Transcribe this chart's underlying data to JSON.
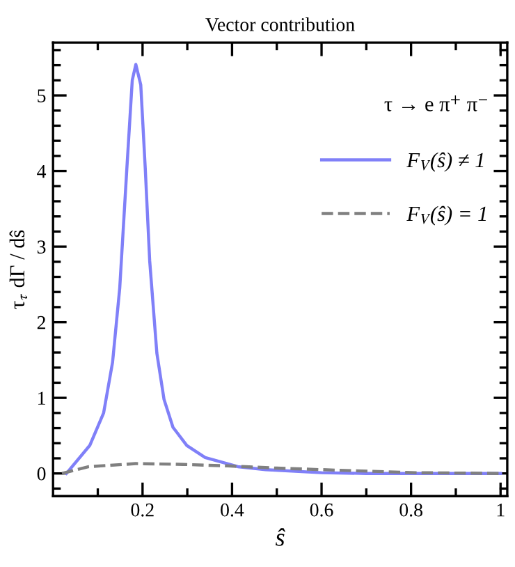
{
  "chart_data": {
    "type": "line",
    "title": "Vector contribution",
    "xlabel": "ŝ",
    "ylabel": "τ$_{τ}$ dΓ / dŝ",
    "xlim": [
      0,
      1.015
    ],
    "ylim": [
      -0.3,
      5.7
    ],
    "xticks": [
      {
        "value": 0.1,
        "label": null
      },
      0.2,
      {
        "value": 0.3,
        "label": null
      },
      0.4,
      {
        "value": 0.5,
        "label": null
      },
      0.6,
      {
        "value": 0.7,
        "label": null
      },
      0.8,
      {
        "value": 0.9,
        "label": null
      },
      1
    ],
    "yticks": [
      {
        "value": -0.2,
        "label": null
      },
      0,
      {
        "value": 0.2,
        "label": null
      },
      {
        "value": 0.4,
        "label": null
      },
      {
        "value": 0.6,
        "label": null
      },
      {
        "value": 0.8,
        "label": null
      },
      1,
      {
        "value": 1.2,
        "label": null
      },
      {
        "value": 1.4,
        "label": null
      },
      {
        "value": 1.6,
        "label": null
      },
      {
        "value": 1.8,
        "label": null
      },
      2,
      {
        "value": 2.2,
        "label": null
      },
      {
        "value": 2.4,
        "label": null
      },
      {
        "value": 2.6,
        "label": null
      },
      {
        "value": 2.8,
        "label": null
      },
      3,
      {
        "value": 3.2,
        "label": null
      },
      {
        "value": 3.4,
        "label": null
      },
      {
        "value": 3.6,
        "label": null
      },
      {
        "value": 3.8,
        "label": null
      },
      4,
      {
        "value": 4.2,
        "label": null
      },
      {
        "value": 4.4,
        "label": null
      },
      {
        "value": 4.6,
        "label": null
      },
      {
        "value": 4.8,
        "label": null
      },
      5,
      {
        "value": 5.2,
        "label": null
      },
      {
        "value": 5.4,
        "label": null
      },
      {
        "value": 5.6,
        "label": null
      }
    ],
    "annotations": [
      "τ → e π$^{+}$ π$^{−}$"
    ],
    "legend": "top right",
    "grid": false,
    "series": [
      {
        "name": "F$_{V}$(ŝ) ≠ 1",
        "color": "#8080f8",
        "line_style": "solid",
        "x": [
          0.03,
          0.082,
          0.113,
          0.133,
          0.149,
          0.165,
          0.177,
          0.185,
          0.196,
          0.206,
          0.216,
          0.232,
          0.248,
          0.268,
          0.299,
          0.34,
          0.413,
          0.475,
          0.6,
          0.7,
          1.0
        ],
        "values": [
          0,
          0.37,
          0.8,
          1.47,
          2.45,
          4.04,
          5.2,
          5.41,
          5.14,
          4.04,
          2.81,
          1.59,
          0.98,
          0.61,
          0.37,
          0.21,
          0.09,
          0.05,
          0.01,
          0,
          0
        ]
      },
      {
        "name": "F$_{V}$(ŝ) = 1",
        "color": "#808080",
        "line_style": "dashed",
        "x": [
          0.02,
          0.08,
          0.185,
          0.29,
          0.39,
          0.5,
          0.6,
          0.81,
          1.0
        ],
        "values": [
          0,
          0.09,
          0.13,
          0.12,
          0.1,
          0.07,
          0.05,
          0.01,
          0
        ]
      }
    ]
  }
}
